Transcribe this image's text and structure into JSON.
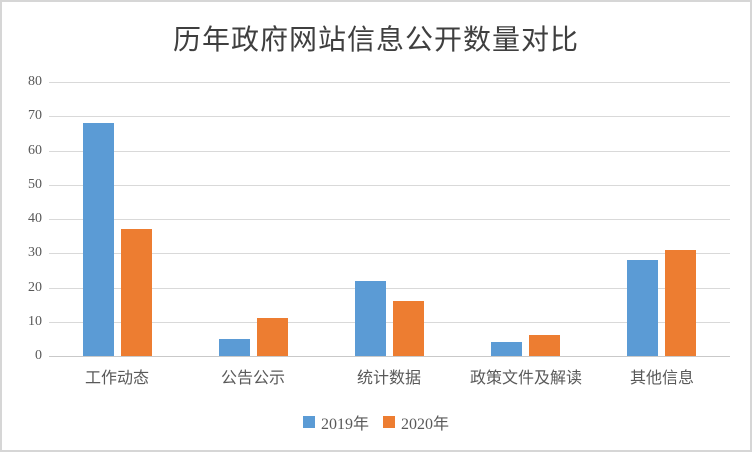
{
  "window": {
    "background": "#ffffff",
    "frame_border_color": "#d6d6d6"
  },
  "chart_data": {
    "type": "bar",
    "title": "历年政府网站信息公开数量对比",
    "categories": [
      "工作动态",
      "公告公示",
      "统计数据",
      "政策文件及解读",
      "其他信息"
    ],
    "series": [
      {
        "name": "2019年",
        "color": "#5B9BD5",
        "values": [
          68,
          5,
          22,
          4,
          28
        ]
      },
      {
        "name": "2020年",
        "color": "#ED7D31",
        "values": [
          37,
          11,
          16,
          6,
          31
        ]
      }
    ],
    "xlabel": "",
    "ylabel": "",
    "ylim": [
      0,
      80
    ],
    "yticks": [
      0,
      10,
      20,
      30,
      40,
      50,
      60,
      70,
      80
    ],
    "grid": true,
    "gridline_color": "#D9D9D9",
    "axis_line_color": "#C9C9C9",
    "tick_label_color": "#595959",
    "title_color": "#3F3F3F",
    "legend_position": "bottom"
  }
}
